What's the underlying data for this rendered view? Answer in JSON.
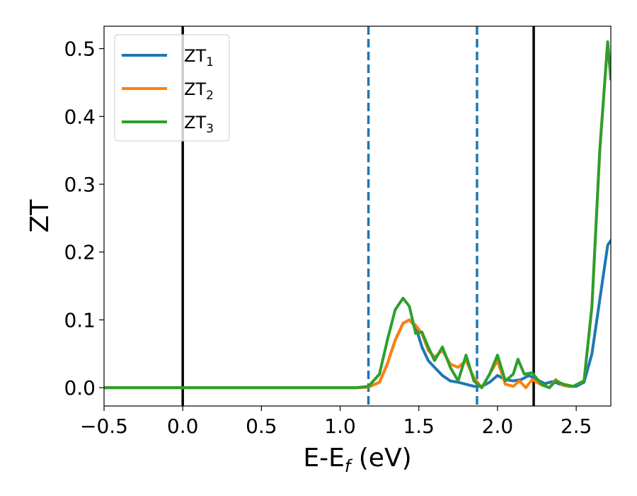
{
  "chart_data": {
    "type": "line",
    "xlabel": "E-E",
    "xlabel_sub": "f",
    "xlabel_unit": " (eV)",
    "ylabel": "ZT",
    "xlim": [
      -0.5,
      2.72
    ],
    "ylim": [
      -0.027,
      0.533
    ],
    "xticks": [
      -0.5,
      0.0,
      0.5,
      1.0,
      1.5,
      2.0,
      2.5
    ],
    "xtick_labels": [
      "−0.5",
      "0.0",
      "0.5",
      "1.0",
      "1.5",
      "2.0",
      "2.5"
    ],
    "yticks": [
      0.0,
      0.1,
      0.2,
      0.3,
      0.4,
      0.5
    ],
    "ytick_labels": [
      "0.0",
      "0.1",
      "0.2",
      "0.3",
      "0.4",
      "0.5"
    ],
    "vlines_solid": [
      0.0,
      2.23
    ],
    "vlines_dashed": [
      1.18,
      1.87
    ],
    "legend_position": "top-left",
    "series": [
      {
        "name": "ZT",
        "sub": "1",
        "color": "#1f77b4",
        "points": [
          [
            -0.5,
            0.0
          ],
          [
            1.1,
            0.0
          ],
          [
            1.18,
            0.001
          ],
          [
            1.25,
            0.008
          ],
          [
            1.3,
            0.035
          ],
          [
            1.35,
            0.07
          ],
          [
            1.4,
            0.095
          ],
          [
            1.44,
            0.1
          ],
          [
            1.48,
            0.09
          ],
          [
            1.52,
            0.06
          ],
          [
            1.56,
            0.04
          ],
          [
            1.6,
            0.03
          ],
          [
            1.65,
            0.018
          ],
          [
            1.7,
            0.01
          ],
          [
            1.75,
            0.008
          ],
          [
            1.8,
            0.005
          ],
          [
            1.85,
            0.002
          ],
          [
            1.9,
            0.002
          ],
          [
            1.95,
            0.008
          ],
          [
            2.0,
            0.018
          ],
          [
            2.05,
            0.012
          ],
          [
            2.1,
            0.01
          ],
          [
            2.15,
            0.012
          ],
          [
            2.2,
            0.018
          ],
          [
            2.25,
            0.012
          ],
          [
            2.3,
            0.006
          ],
          [
            2.35,
            0.009
          ],
          [
            2.4,
            0.005
          ],
          [
            2.45,
            0.002
          ],
          [
            2.5,
            0.002
          ],
          [
            2.55,
            0.008
          ],
          [
            2.6,
            0.05
          ],
          [
            2.65,
            0.13
          ],
          [
            2.7,
            0.21
          ],
          [
            2.72,
            0.217
          ]
        ]
      },
      {
        "name": "ZT",
        "sub": "2",
        "color": "#ff7f0e",
        "points": [
          [
            -0.5,
            0.0
          ],
          [
            1.1,
            0.0
          ],
          [
            1.18,
            0.001
          ],
          [
            1.25,
            0.008
          ],
          [
            1.3,
            0.035
          ],
          [
            1.35,
            0.07
          ],
          [
            1.4,
            0.095
          ],
          [
            1.44,
            0.1
          ],
          [
            1.48,
            0.092
          ],
          [
            1.52,
            0.08
          ],
          [
            1.56,
            0.055
          ],
          [
            1.6,
            0.045
          ],
          [
            1.65,
            0.055
          ],
          [
            1.7,
            0.035
          ],
          [
            1.75,
            0.03
          ],
          [
            1.8,
            0.04
          ],
          [
            1.85,
            0.015
          ],
          [
            1.9,
            0.0
          ],
          [
            1.95,
            0.02
          ],
          [
            2.0,
            0.04
          ],
          [
            2.05,
            0.005
          ],
          [
            2.1,
            0.002
          ],
          [
            2.14,
            0.01
          ],
          [
            2.18,
            0.0
          ],
          [
            2.22,
            0.012
          ],
          [
            2.28,
            0.004
          ],
          [
            2.33,
            0.0
          ],
          [
            2.37,
            0.012
          ],
          [
            2.42,
            0.003
          ],
          [
            2.48,
            0.002
          ],
          [
            2.55,
            0.01
          ],
          [
            2.6,
            0.12
          ],
          [
            2.65,
            0.35
          ],
          [
            2.7,
            0.51
          ],
          [
            2.72,
            0.455
          ]
        ]
      },
      {
        "name": "ZT",
        "sub": "3",
        "color": "#2ca02c",
        "points": [
          [
            -0.5,
            0.0
          ],
          [
            1.1,
            0.0
          ],
          [
            1.18,
            0.002
          ],
          [
            1.25,
            0.02
          ],
          [
            1.3,
            0.07
          ],
          [
            1.35,
            0.115
          ],
          [
            1.4,
            0.132
          ],
          [
            1.44,
            0.12
          ],
          [
            1.48,
            0.08
          ],
          [
            1.52,
            0.082
          ],
          [
            1.56,
            0.06
          ],
          [
            1.6,
            0.04
          ],
          [
            1.65,
            0.06
          ],
          [
            1.7,
            0.03
          ],
          [
            1.75,
            0.01
          ],
          [
            1.8,
            0.048
          ],
          [
            1.85,
            0.01
          ],
          [
            1.9,
            0.0
          ],
          [
            1.95,
            0.02
          ],
          [
            2.0,
            0.048
          ],
          [
            2.05,
            0.01
          ],
          [
            2.1,
            0.02
          ],
          [
            2.13,
            0.042
          ],
          [
            2.17,
            0.02
          ],
          [
            2.22,
            0.022
          ],
          [
            2.28,
            0.005
          ],
          [
            2.33,
            0.0
          ],
          [
            2.37,
            0.01
          ],
          [
            2.42,
            0.005
          ],
          [
            2.48,
            0.002
          ],
          [
            2.55,
            0.01
          ],
          [
            2.6,
            0.12
          ],
          [
            2.65,
            0.35
          ],
          [
            2.7,
            0.51
          ],
          [
            2.72,
            0.455
          ]
        ]
      }
    ]
  }
}
